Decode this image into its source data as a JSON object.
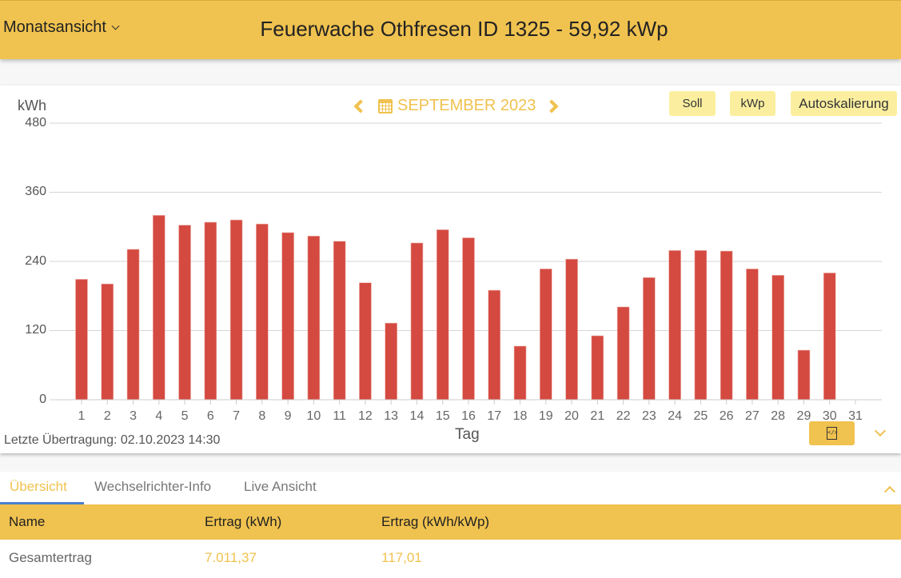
{
  "header": {
    "view_selector": "Monatsansicht",
    "title": "Feuerwache Othfresen ID 1325 - 59,92 kWp"
  },
  "chart_controls": {
    "month_label": "SEPTEMBER 2023",
    "chips": [
      {
        "label": "Soll"
      },
      {
        "label": "kWp"
      },
      {
        "label": "Autoskalierung"
      }
    ]
  },
  "colors": {
    "accent": "#f0c24f",
    "bar": "#d44a40",
    "chip": "#fbef9f",
    "tab_underline": "#4a7fd0"
  },
  "chart_data": {
    "type": "bar",
    "title": "SEPTEMBER 2023",
    "xlabel": "Tag",
    "ylabel": "kWh",
    "ylim": [
      0,
      480
    ],
    "yticks": [
      0,
      120,
      240,
      360,
      480
    ],
    "grid": true,
    "legend": null,
    "categories": [
      "1",
      "2",
      "3",
      "4",
      "5",
      "6",
      "7",
      "8",
      "9",
      "10",
      "11",
      "12",
      "13",
      "14",
      "15",
      "16",
      "17",
      "18",
      "19",
      "20",
      "21",
      "22",
      "23",
      "24",
      "25",
      "26",
      "27",
      "28",
      "29",
      "30",
      "31"
    ],
    "series": [
      {
        "name": "Ertrag (kWh)",
        "color": "#d44a40",
        "values": [
          209,
          201,
          261,
          320,
          303,
          308,
          312,
          305,
          290,
          284,
          275,
          203,
          133,
          272,
          295,
          281,
          190,
          93,
          227,
          244,
          111,
          161,
          212,
          259,
          259,
          258,
          227,
          216,
          86,
          220,
          null
        ]
      }
    ]
  },
  "footer": {
    "last_transmission": "Letzte Übertragung: 02.10.2023 14:30"
  },
  "tabs": [
    {
      "label": "Übersicht",
      "active": true
    },
    {
      "label": "Wechselrichter-Info",
      "active": false
    },
    {
      "label": "Live Ansicht",
      "active": false
    }
  ],
  "table": {
    "headers": [
      "Name",
      "Ertrag (kWh)",
      "Ertrag (kWh/kWp)"
    ],
    "rows": [
      [
        "Gesamtertrag",
        "7.011,37",
        "117,01"
      ]
    ]
  }
}
